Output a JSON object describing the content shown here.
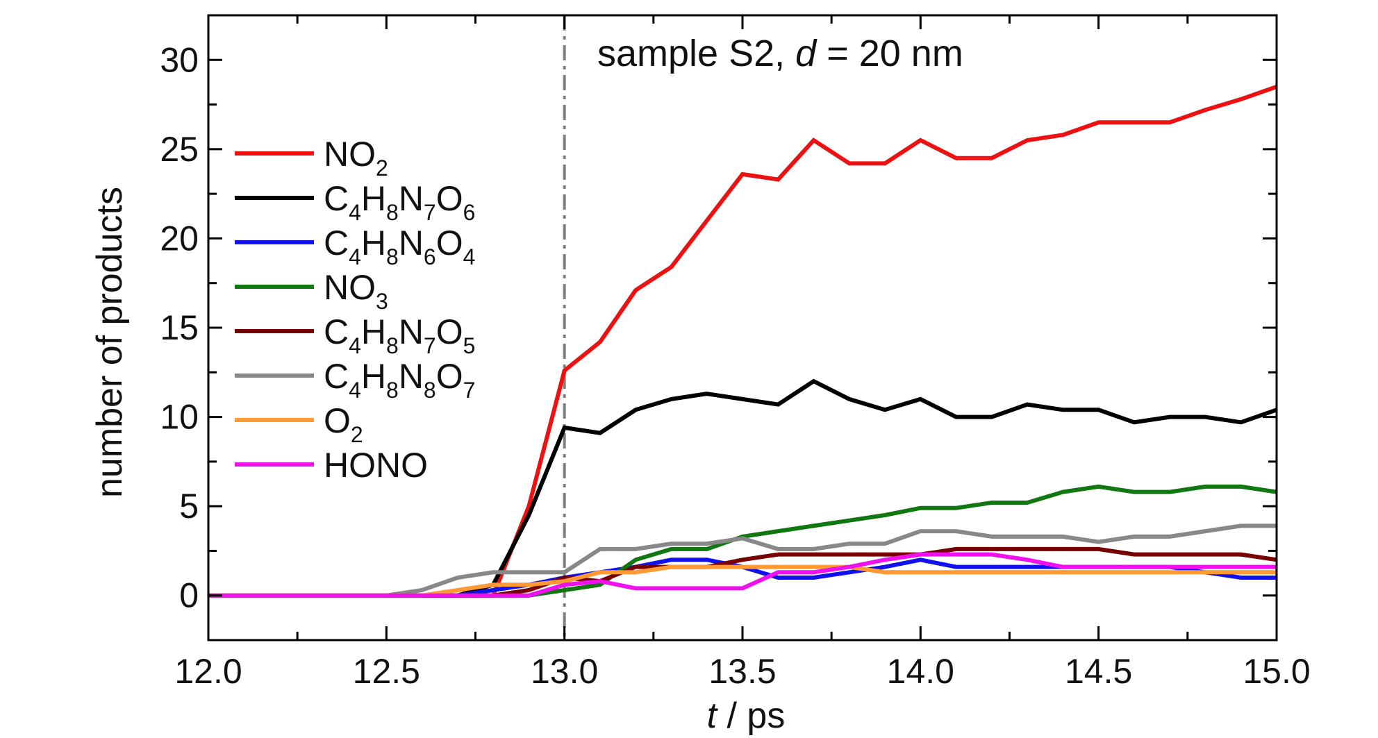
{
  "chart_data": {
    "type": "line",
    "title": "",
    "annotation": {
      "prefix": "sample S2, ",
      "var": "d",
      "suffix": " = 20 nm"
    },
    "xlabel": {
      "var": "t",
      "unit": " / ps"
    },
    "ylabel": "number of products",
    "xlim": [
      12.0,
      15.0
    ],
    "ylim": [
      -2.5,
      32.5
    ],
    "xticks": [
      {
        "value": 12.0,
        "label": "12.0"
      },
      {
        "value": 12.5,
        "label": "12.5"
      },
      {
        "value": 13.0,
        "label": "13.0"
      },
      {
        "value": 13.5,
        "label": "13.5"
      },
      {
        "value": 14.0,
        "label": "14.0"
      },
      {
        "value": 14.5,
        "label": "14.5"
      },
      {
        "value": 15.0,
        "label": "15.0"
      }
    ],
    "yticks": [
      {
        "value": 0,
        "label": "0"
      },
      {
        "value": 5,
        "label": "5"
      },
      {
        "value": 10,
        "label": "10"
      },
      {
        "value": 15,
        "label": "15"
      },
      {
        "value": 20,
        "label": "20"
      },
      {
        "value": 25,
        "label": "25"
      },
      {
        "value": 30,
        "label": "30"
      }
    ],
    "vline": {
      "x": 13.0,
      "color": "#808080",
      "style": "dash-dot"
    },
    "grid": false,
    "legend_position": "left",
    "x": [
      12.0,
      12.1,
      12.2,
      12.3,
      12.4,
      12.5,
      12.6,
      12.7,
      12.8,
      12.9,
      13.0,
      13.1,
      13.2,
      13.3,
      13.4,
      13.5,
      13.6,
      13.7,
      13.8,
      13.9,
      14.0,
      14.1,
      14.2,
      14.3,
      14.4,
      14.5,
      14.6,
      14.7,
      14.8,
      14.9,
      15.0
    ],
    "series": [
      {
        "name": "NO2",
        "label_parts": [
          [
            "NO",
            ""
          ],
          [
            "2",
            "sub"
          ]
        ],
        "color": "#ee1111",
        "values": [
          0,
          0,
          0,
          0,
          0,
          0,
          0,
          0,
          0,
          5,
          12.6,
          14.2,
          17.1,
          18.4,
          21,
          23.6,
          23.3,
          25.5,
          24.2,
          24.2,
          25.5,
          24.5,
          24.5,
          25.5,
          25.8,
          26.5,
          26.5,
          26.5,
          27.2,
          27.8,
          28.5
        ]
      },
      {
        "name": "C4H8N7O6",
        "label_parts": [
          [
            "C",
            ""
          ],
          [
            "4",
            "sub"
          ],
          [
            "H",
            ""
          ],
          [
            "8",
            "sub"
          ],
          [
            "N",
            ""
          ],
          [
            "7",
            "sub"
          ],
          [
            "O",
            ""
          ],
          [
            "6",
            "sub"
          ]
        ],
        "color": "#000000",
        "values": [
          0,
          0,
          0,
          0,
          0,
          0,
          0,
          0,
          0.6,
          4.5,
          9.4,
          9.1,
          10.4,
          11,
          11.3,
          11,
          10.7,
          12,
          11,
          10.4,
          11,
          10,
          10,
          10.7,
          10.4,
          10.4,
          9.7,
          10,
          10,
          9.7,
          10.4
        ]
      },
      {
        "name": "C4H8N6O4",
        "label_parts": [
          [
            "C",
            ""
          ],
          [
            "4",
            "sub"
          ],
          [
            "H",
            ""
          ],
          [
            "8",
            "sub"
          ],
          [
            "N",
            ""
          ],
          [
            "6",
            "sub"
          ],
          [
            "O",
            ""
          ],
          [
            "4",
            "sub"
          ]
        ],
        "color": "#1111ee",
        "values": [
          0,
          0,
          0,
          0,
          0,
          0,
          0,
          0,
          0.3,
          0.6,
          1,
          1.3,
          1.6,
          2,
          2,
          1.6,
          1,
          1,
          1.3,
          1.6,
          2,
          1.6,
          1.6,
          1.6,
          1.6,
          1.6,
          1.6,
          1.6,
          1.3,
          1,
          1
        ]
      },
      {
        "name": "NO3",
        "label_parts": [
          [
            "NO",
            ""
          ],
          [
            "3",
            "sub"
          ]
        ],
        "color": "#117711",
        "values": [
          0,
          0,
          0,
          0,
          0,
          0,
          0,
          0,
          0,
          0,
          0.3,
          0.6,
          2,
          2.6,
          2.6,
          3.3,
          3.6,
          3.9,
          4.2,
          4.5,
          4.9,
          4.9,
          5.2,
          5.2,
          5.8,
          6.1,
          5.8,
          5.8,
          6.1,
          6.1,
          5.8
        ]
      },
      {
        "name": "C4H8N7O5",
        "label_parts": [
          [
            "C",
            ""
          ],
          [
            "4",
            "sub"
          ],
          [
            "H",
            ""
          ],
          [
            "8",
            "sub"
          ],
          [
            "N",
            ""
          ],
          [
            "7",
            "sub"
          ],
          [
            "O",
            ""
          ],
          [
            "5",
            "sub"
          ]
        ],
        "color": "#770000",
        "values": [
          0,
          0,
          0,
          0,
          0,
          0,
          0,
          0,
          0,
          0.3,
          1,
          0.8,
          1.6,
          1.6,
          1.6,
          2,
          2.3,
          2.3,
          2.3,
          2.3,
          2.3,
          2.6,
          2.6,
          2.6,
          2.6,
          2.6,
          2.3,
          2.3,
          2.3,
          2.3,
          2
        ]
      },
      {
        "name": "C4H8N8O7",
        "label_parts": [
          [
            "C",
            ""
          ],
          [
            "4",
            "sub"
          ],
          [
            "H",
            ""
          ],
          [
            "8",
            "sub"
          ],
          [
            "N",
            ""
          ],
          [
            "8",
            "sub"
          ],
          [
            "O",
            ""
          ],
          [
            "7",
            "sub"
          ]
        ],
        "color": "#888888",
        "values": [
          0,
          0,
          0,
          0,
          0,
          0,
          0.3,
          1,
          1.3,
          1.3,
          1.3,
          2.6,
          2.6,
          2.9,
          2.9,
          3.2,
          2.6,
          2.6,
          2.9,
          2.9,
          3.6,
          3.6,
          3.3,
          3.3,
          3.3,
          3,
          3.3,
          3.3,
          3.6,
          3.9,
          3.9
        ]
      },
      {
        "name": "O2",
        "label_parts": [
          [
            "O",
            ""
          ],
          [
            "2",
            "sub"
          ]
        ],
        "color": "#ff9933",
        "values": [
          0,
          0,
          0,
          0,
          0,
          0,
          0,
          0.3,
          0.6,
          0.6,
          0.8,
          1.3,
          1.3,
          1.6,
          1.6,
          1.6,
          1.6,
          1.6,
          1.6,
          1.3,
          1.3,
          1.3,
          1.3,
          1.3,
          1.3,
          1.3,
          1.3,
          1.3,
          1.3,
          1.3,
          1.3
        ]
      },
      {
        "name": "HONO",
        "label_parts": [
          [
            "HONO",
            ""
          ]
        ],
        "color": "#ee11ee",
        "values": [
          0,
          0,
          0,
          0,
          0,
          0,
          0,
          0,
          0,
          0,
          0.6,
          0.8,
          0.4,
          0.4,
          0.4,
          0.4,
          1.3,
          1.3,
          1.6,
          2,
          2.3,
          2.3,
          2.3,
          2,
          1.6,
          1.6,
          1.6,
          1.6,
          1.6,
          1.6,
          1.6
        ]
      }
    ]
  }
}
